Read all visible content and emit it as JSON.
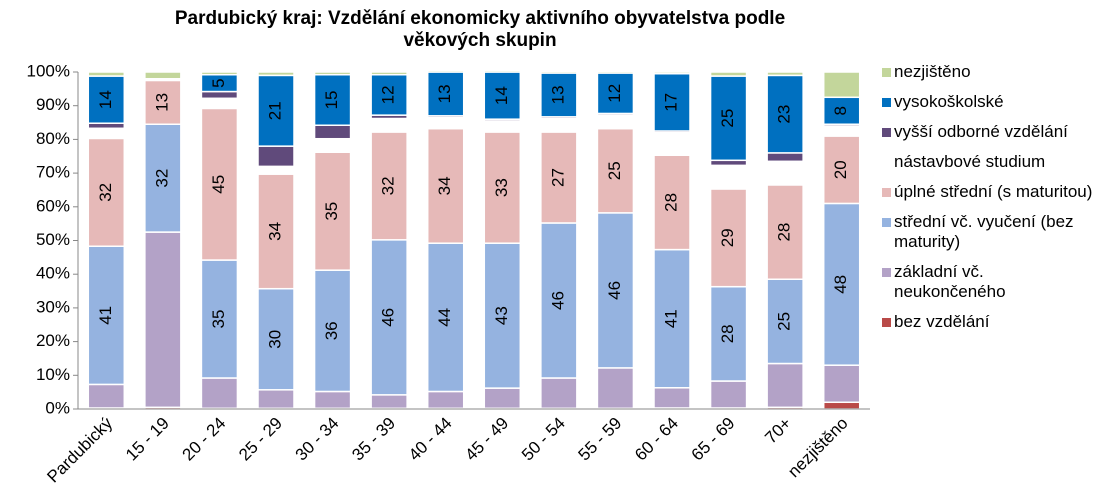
{
  "chart_data": {
    "type": "stacked_bar_100",
    "title": "Pardubický kraj: Vzdělání ekonomicky aktivního obyvatelstva  podle věkových skupin",
    "categories": [
      "Pardubický",
      "15 - 19",
      "20 - 24",
      "25 - 29",
      "30 - 34",
      "35 - 39",
      "40 - 44",
      "45 - 49",
      "50 - 54",
      "55 - 59",
      "60 - 64",
      "65 - 69",
      "70+",
      "nezjištěno"
    ],
    "series": [
      {
        "name": "bez vzdělání",
        "color": "#b94a48",
        "values": [
          0.3,
          0.5,
          0.2,
          0.2,
          0.2,
          0.2,
          0.2,
          0.2,
          0.2,
          0.2,
          0.3,
          0.3,
          0.5,
          2
        ]
      },
      {
        "name": "základní vč. neukončeného",
        "color": "#b3a2c7",
        "values": [
          7,
          52,
          9,
          5.5,
          5,
          4,
          5,
          6,
          9,
          12,
          6,
          8,
          13,
          11
        ]
      },
      {
        "name": "střední vč. vyučení (bez maturity)",
        "color": "#95b3e0",
        "data_labels": true,
        "values": [
          41,
          32,
          35,
          30,
          36,
          46,
          44,
          43,
          46,
          46,
          41,
          28,
          25,
          48
        ]
      },
      {
        "name": "úplné střední (s maturitou)",
        "color": "#e6b9b8",
        "data_labels": true,
        "values": [
          32,
          13,
          45,
          34,
          35,
          32,
          34,
          33,
          27,
          25,
          28,
          29,
          28,
          20
        ]
      },
      {
        "name": "nástavbové studium",
        "color": "#ffffff",
        "values": [
          3,
          0.5,
          3,
          2.3,
          4,
          4,
          3.3,
          3.3,
          4,
          4,
          6.7,
          7,
          7,
          3
        ]
      },
      {
        "name": "vyšší odborné vzdělání",
        "color": "#604a7b",
        "values": [
          1.5,
          0,
          2,
          6,
          4,
          1,
          0.5,
          0.5,
          0.5,
          0.5,
          0.5,
          1.5,
          2.5,
          0.5
        ]
      },
      {
        "name": "vysokoškolské",
        "color": "#0070c0",
        "data_labels": true,
        "values": [
          14,
          0,
          5,
          21,
          15,
          12,
          13,
          14,
          13,
          12,
          17,
          25,
          23,
          8
        ]
      },
      {
        "name": "nezjištěno",
        "color": "#c3d69b",
        "values": [
          1.2,
          2,
          0.8,
          1,
          0.8,
          0.8,
          0.5,
          0.5,
          0.5,
          0.5,
          0.5,
          1.2,
          1,
          7.5
        ]
      }
    ],
    "ylim": [
      0,
      100
    ],
    "yticks": [
      {
        "value": 0,
        "label": "0%"
      },
      {
        "value": 10,
        "label": "10%"
      },
      {
        "value": 20,
        "label": "20%"
      },
      {
        "value": 30,
        "label": "30%"
      },
      {
        "value": 40,
        "label": "40%"
      },
      {
        "value": 50,
        "label": "50%"
      },
      {
        "value": 60,
        "label": "60%"
      },
      {
        "value": 70,
        "label": "70%"
      },
      {
        "value": 80,
        "label": "80%"
      },
      {
        "value": 90,
        "label": "90%"
      },
      {
        "value": 100,
        "label": "100%"
      }
    ],
    "legend": "right"
  }
}
